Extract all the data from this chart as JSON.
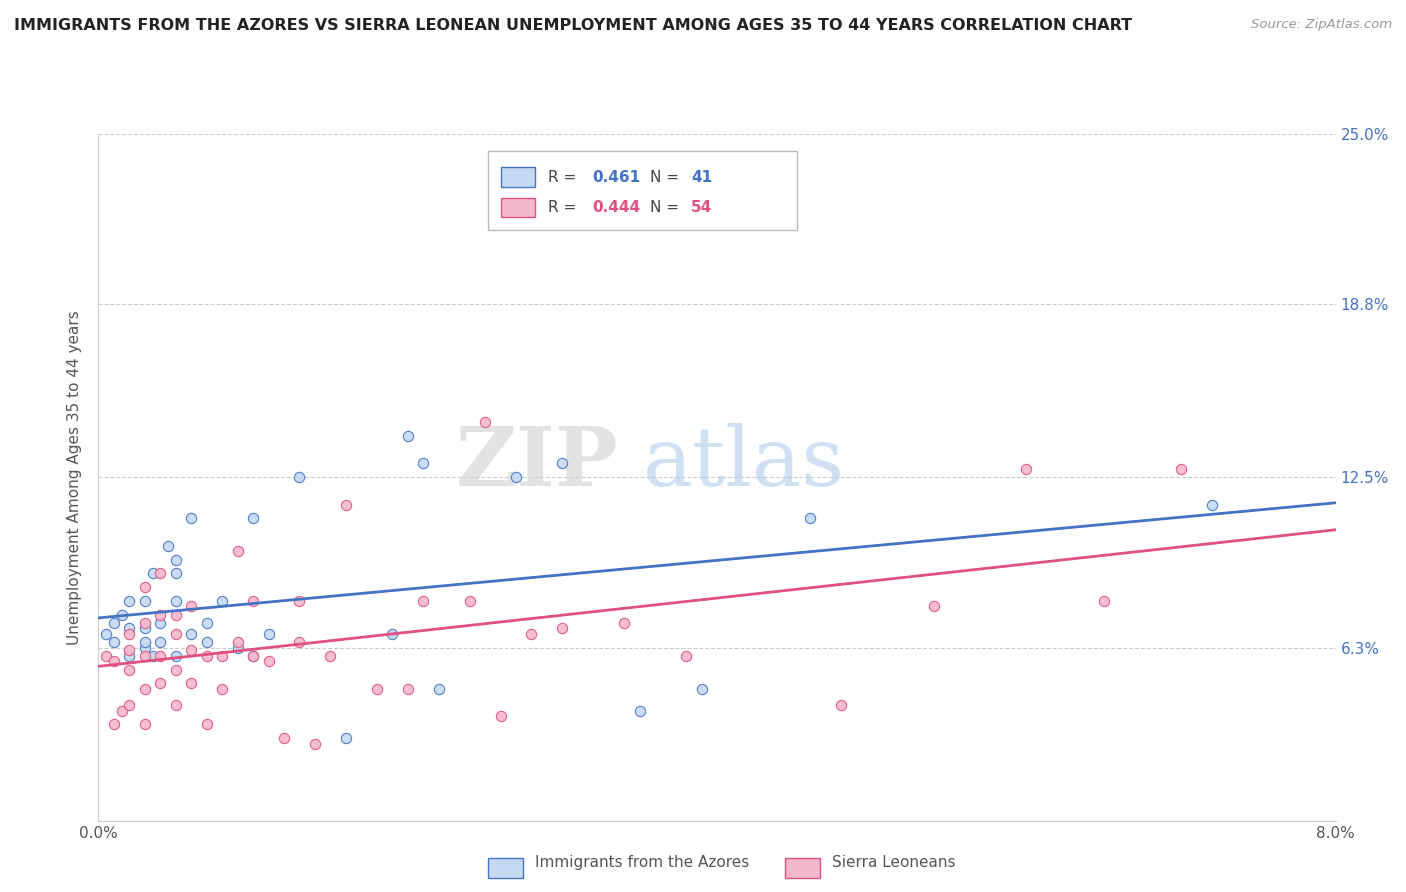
{
  "title": "IMMIGRANTS FROM THE AZORES VS SIERRA LEONEAN UNEMPLOYMENT AMONG AGES 35 TO 44 YEARS CORRELATION CHART",
  "source": "Source: ZipAtlas.com",
  "ylabel": "Unemployment Among Ages 35 to 44 years",
  "xlim": [
    0.0,
    0.08
  ],
  "ylim": [
    0.0,
    0.25
  ],
  "xticks": [
    0.0,
    0.01,
    0.02,
    0.03,
    0.04,
    0.05,
    0.06,
    0.07,
    0.08
  ],
  "ytick_positions": [
    0.0,
    0.063,
    0.125,
    0.188,
    0.25
  ],
  "ytick_labels": [
    "",
    "6.3%",
    "12.5%",
    "18.8%",
    "25.0%"
  ],
  "blue_fill": "#c5d9f1",
  "blue_edge": "#4472c4",
  "pink_fill": "#f4b8cc",
  "pink_edge": "#e05080",
  "blue_line_color": "#4472c4",
  "pink_line_color": "#e05080",
  "r_blue": 0.461,
  "n_blue": 41,
  "r_pink": 0.444,
  "n_pink": 54,
  "legend_label_blue": "Immigrants from the Azores",
  "legend_label_pink": "Sierra Leoneans",
  "watermark_zip": "ZIP",
  "watermark_atlas": "atlas",
  "blue_scatter_x": [
    0.0005,
    0.001,
    0.001,
    0.0015,
    0.002,
    0.002,
    0.002,
    0.003,
    0.003,
    0.003,
    0.003,
    0.0035,
    0.0035,
    0.004,
    0.004,
    0.0045,
    0.005,
    0.005,
    0.005,
    0.005,
    0.006,
    0.006,
    0.007,
    0.007,
    0.008,
    0.009,
    0.01,
    0.01,
    0.011,
    0.013,
    0.016,
    0.019,
    0.02,
    0.021,
    0.022,
    0.027,
    0.03,
    0.035,
    0.039,
    0.046,
    0.072
  ],
  "blue_scatter_y": [
    0.068,
    0.065,
    0.072,
    0.075,
    0.06,
    0.07,
    0.08,
    0.063,
    0.065,
    0.07,
    0.08,
    0.06,
    0.09,
    0.065,
    0.072,
    0.1,
    0.06,
    0.08,
    0.09,
    0.095,
    0.068,
    0.11,
    0.065,
    0.072,
    0.08,
    0.063,
    0.06,
    0.11,
    0.068,
    0.125,
    0.03,
    0.068,
    0.14,
    0.13,
    0.048,
    0.125,
    0.13,
    0.04,
    0.048,
    0.11,
    0.115
  ],
  "pink_scatter_x": [
    0.0005,
    0.001,
    0.001,
    0.0015,
    0.002,
    0.002,
    0.002,
    0.002,
    0.003,
    0.003,
    0.003,
    0.003,
    0.003,
    0.004,
    0.004,
    0.004,
    0.004,
    0.005,
    0.005,
    0.005,
    0.005,
    0.006,
    0.006,
    0.006,
    0.007,
    0.007,
    0.008,
    0.008,
    0.009,
    0.009,
    0.01,
    0.01,
    0.011,
    0.012,
    0.013,
    0.013,
    0.014,
    0.015,
    0.016,
    0.018,
    0.02,
    0.021,
    0.024,
    0.025,
    0.026,
    0.028,
    0.03,
    0.034,
    0.038,
    0.048,
    0.054,
    0.06,
    0.065,
    0.07
  ],
  "pink_scatter_y": [
    0.06,
    0.035,
    0.058,
    0.04,
    0.042,
    0.055,
    0.062,
    0.068,
    0.035,
    0.048,
    0.06,
    0.072,
    0.085,
    0.05,
    0.06,
    0.075,
    0.09,
    0.042,
    0.055,
    0.068,
    0.075,
    0.05,
    0.062,
    0.078,
    0.035,
    0.06,
    0.048,
    0.06,
    0.065,
    0.098,
    0.06,
    0.08,
    0.058,
    0.03,
    0.065,
    0.08,
    0.028,
    0.06,
    0.115,
    0.048,
    0.048,
    0.08,
    0.08,
    0.145,
    0.038,
    0.068,
    0.07,
    0.072,
    0.06,
    0.042,
    0.078,
    0.128,
    0.08,
    0.128
  ]
}
